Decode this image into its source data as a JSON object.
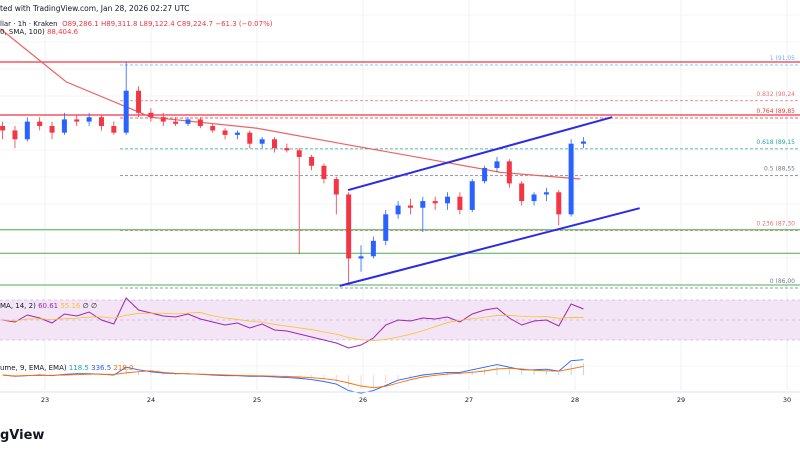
{
  "header": {
    "published": "ted with TradingView.com, Jan 28, 2026 02:27 UTC",
    "symbol": "llar · 1h · Kraken",
    "ohlc": "O89,286.1  H89,311.8  L89,122.4  C89,224.7  −61.3 (−0.07%)",
    "sma_label": "0, SMA, 100)",
    "sma_value": "88,404.6"
  },
  "rsi": {
    "label": "MA, 14, 2)",
    "v1": "60.61",
    "v2": "55.16",
    "v3": "∅  ∅"
  },
  "macd": {
    "label": "ume, 9, EMA, EMA)",
    "v1": "118.5",
    "v2": "336.5",
    "v3": "218.0"
  },
  "footer": {
    "logo": "gView"
  },
  "colors": {
    "up": "#2962ff",
    "down": "#f23645",
    "sma": "#f06262",
    "trend": "#2a2ae8",
    "resistance": "#f23645",
    "support": "#4caf50",
    "rsi": "#9c27b0",
    "rsi_ma": "#fbc02d"
  },
  "chart_data": {
    "type": "candlestick",
    "xlim": [
      22.58,
      30.15
    ],
    "ylim": [
      85400,
      91900
    ],
    "x_ticks": [
      "23",
      "24",
      "25",
      "26",
      "27",
      "28",
      "29",
      "30"
    ],
    "fib_levels": [
      {
        "label": "1 (91,05",
        "price": 91050,
        "color": "#64b5f6"
      },
      {
        "label": "0.832 (90,24",
        "price": 90240,
        "color": "#e57373"
      },
      {
        "label": "0.764 (89,85",
        "price": 89850,
        "color": "#e53935"
      },
      {
        "label": "0.618 (89,15",
        "price": 89150,
        "color": "#26a69a"
      },
      {
        "label": "0.5 (88,55",
        "price": 88550,
        "color": "#787b86"
      },
      {
        "label": "0.236 (87,30",
        "price": 87300,
        "color": "#e57373"
      },
      {
        "label": "0 (86,00",
        "price": 86000,
        "color": "#787b86"
      }
    ],
    "resistance_lines": [
      91050,
      89850
    ],
    "support_lines": [
      87250,
      86720,
      86000
    ],
    "channel": [
      [
        [
          25.86,
          88150
        ],
        [
          28.35,
          89800
        ]
      ],
      [
        [
          25.78,
          85980
        ],
        [
          28.61,
          87740
        ]
      ]
    ],
    "sma": [
      [
        22.58,
        91800
      ],
      [
        23.2,
        90600
      ],
      [
        24,
        89800
      ],
      [
        25,
        89550
      ],
      [
        25.8,
        89200
      ],
      [
        26.5,
        88900
      ],
      [
        27.3,
        88550
      ],
      [
        28.05,
        88400
      ]
    ],
    "candles": [
      [
        89600,
        89700,
        89300,
        89500
      ],
      [
        89500,
        89600,
        89100,
        89300
      ],
      [
        89300,
        89800,
        89250,
        89700
      ],
      [
        89700,
        89800,
        89500,
        89600
      ],
      [
        89600,
        89700,
        89300,
        89450
      ],
      [
        89450,
        89900,
        89400,
        89750
      ],
      [
        89750,
        89850,
        89600,
        89700
      ],
      [
        89700,
        89900,
        89600,
        89800
      ],
      [
        89800,
        89850,
        89500,
        89600
      ],
      [
        89600,
        89700,
        89400,
        89450
      ],
      [
        89450,
        91050,
        89400,
        90400
      ],
      [
        90400,
        90500,
        89800,
        89900
      ],
      [
        89900,
        90000,
        89700,
        89800
      ],
      [
        89800,
        89900,
        89600,
        89700
      ],
      [
        89700,
        89800,
        89600,
        89650
      ],
      [
        89650,
        89800,
        89600,
        89750
      ],
      [
        89750,
        89800,
        89550,
        89600
      ],
      [
        89600,
        89650,
        89450,
        89500
      ],
      [
        89500,
        89550,
        89300,
        89400
      ],
      [
        89400,
        89500,
        89300,
        89450
      ],
      [
        89450,
        89500,
        89100,
        89200
      ],
      [
        89200,
        89350,
        89100,
        89300
      ],
      [
        89300,
        89350,
        89000,
        89100
      ],
      [
        89100,
        89200,
        89000,
        89050
      ],
      [
        89050,
        89100,
        86700,
        88900
      ],
      [
        88900,
        88950,
        88600,
        88700
      ],
      [
        88700,
        88750,
        88300,
        88400
      ],
      [
        88400,
        88450,
        87600,
        88050
      ],
      [
        88050,
        88100,
        86000,
        86600
      ],
      [
        86600,
        86900,
        86300,
        86650
      ],
      [
        86650,
        87100,
        86600,
        87000
      ],
      [
        87000,
        87700,
        86900,
        87600
      ],
      [
        87600,
        87900,
        87500,
        87800
      ],
      [
        87800,
        87950,
        87600,
        87750
      ],
      [
        87750,
        88000,
        87200,
        87900
      ],
      [
        87900,
        88000,
        87700,
        87850
      ],
      [
        87850,
        88100,
        87700,
        88000
      ],
      [
        88000,
        88100,
        87600,
        87700
      ],
      [
        87700,
        88400,
        87650,
        88350
      ],
      [
        88350,
        88700,
        88300,
        88650
      ],
      [
        88650,
        88900,
        88550,
        88800
      ],
      [
        88800,
        88850,
        88200,
        88300
      ],
      [
        88300,
        88350,
        87800,
        87900
      ],
      [
        87900,
        88100,
        87800,
        88050
      ],
      [
        88050,
        88200,
        87900,
        88100
      ],
      [
        88100,
        88150,
        87350,
        87600
      ],
      [
        87600,
        89300,
        87550,
        89200
      ],
      [
        89200,
        89350,
        89100,
        89250
      ]
    ],
    "rsi": [
      50,
      48,
      55,
      52,
      47,
      56,
      54,
      58,
      50,
      46,
      72,
      60,
      57,
      54,
      53,
      56,
      51,
      48,
      45,
      47,
      42,
      46,
      40,
      39,
      36,
      33,
      30,
      27,
      22,
      25,
      32,
      45,
      50,
      49,
      52,
      51,
      53,
      48,
      56,
      60,
      62,
      52,
      45,
      49,
      50,
      44,
      66,
      61
    ],
    "macd": [
      0,
      -10,
      -5,
      0,
      -5,
      5,
      10,
      10,
      5,
      0,
      60,
      40,
      25,
      15,
      10,
      10,
      5,
      0,
      -5,
      -5,
      -10,
      -10,
      -15,
      -20,
      -25,
      -35,
      -50,
      -70,
      -120,
      -140,
      -120,
      -80,
      -40,
      -20,
      0,
      10,
      20,
      20,
      40,
      60,
      80,
      60,
      40,
      40,
      45,
      30,
      110,
      118
    ]
  }
}
